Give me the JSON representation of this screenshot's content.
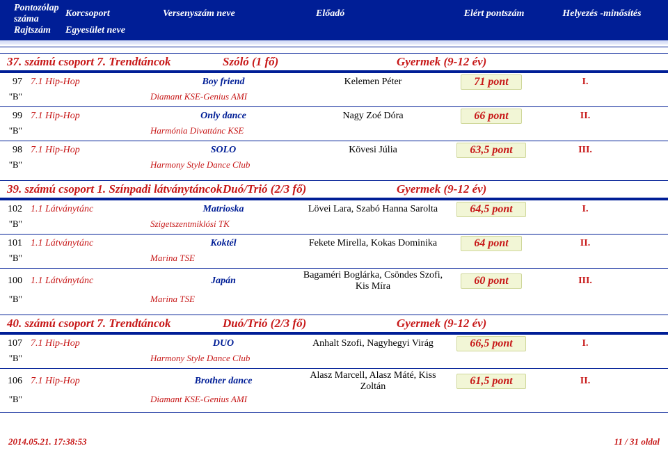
{
  "header": {
    "line1": {
      "num": "Pontozólap száma",
      "korc": "Korcsoport",
      "vsz": "Versenyszám neve",
      "elo": "Előadó",
      "pont": "Elért pontszám",
      "hely": "Helyezés -minősítés"
    },
    "line2": {
      "num": "Rajtszám",
      "korc": "Egyesület neve"
    }
  },
  "groups": [
    {
      "name": "37. számú csoport  7.  Trendtáncok",
      "form": "Szóló (1 fő)",
      "age": "Gyermek (9-12 év)",
      "entries": [
        {
          "start": "97",
          "cat": "7.1 Hip-Hop",
          "title": "Boy friend",
          "perf": "Kelemen Péter",
          "score": "71 pont",
          "place": "I.",
          "b": "\"B\"",
          "club": "Diamant KSE-Genius AMI"
        },
        {
          "start": "99",
          "cat": "7.1 Hip-Hop",
          "title": "Only dance",
          "perf": "Nagy Zoé Dóra",
          "score": "66 pont",
          "place": "II.",
          "b": "\"B\"",
          "club": "Harmónia Divattánc KSE"
        },
        {
          "start": "98",
          "cat": "7.1 Hip-Hop",
          "title": "SOLO",
          "perf": "Kövesi Júlia",
          "score": "63,5 pont",
          "place": "III.",
          "b": "\"B\"",
          "club": "Harmony Style Dance Club"
        }
      ]
    },
    {
      "name": "39. számú csoport  1.  Színpadi látványtáncok",
      "form": "Duó/Trió (2/3 fő)",
      "age": "Gyermek (9-12 év)",
      "entries": [
        {
          "start": "102",
          "cat": "1.1 Látványtánc",
          "title": "Matrioska",
          "perf": "Lövei Lara, Szabó Hanna Sarolta",
          "score": "64,5 pont",
          "place": "I.",
          "b": "\"B\"",
          "club": "Szigetszentmiklósi TK"
        },
        {
          "start": "101",
          "cat": "1.1 Látványtánc",
          "title": "Koktél",
          "perf": "Fekete Mirella, Kokas Dominika",
          "score": "64 pont",
          "place": "II.",
          "b": "\"B\"",
          "club": "Marina TSE"
        },
        {
          "start": "100",
          "cat": "1.1 Látványtánc",
          "title": "Japán",
          "perf": "Bagaméri Boglárka, Csöndes Szofi, Kis Míra",
          "score": "60 pont",
          "place": "III.",
          "b": "\"B\"",
          "club": "Marina TSE"
        }
      ]
    },
    {
      "name": "40. számú csoport  7.  Trendtáncok",
      "form": "Duó/Trió (2/3 fő)",
      "age": "Gyermek (9-12 év)",
      "entries": [
        {
          "start": "107",
          "cat": "7.1 Hip-Hop",
          "title": "DUO",
          "perf": "Anhalt Szofi, Nagyhegyi Virág",
          "score": "66,5 pont",
          "place": "I.",
          "b": "\"B\"",
          "club": "Harmony Style Dance Club"
        },
        {
          "start": "106",
          "cat": "7.1 Hip-Hop",
          "title": "Brother dance",
          "perf": "Alasz Marcell, Alasz Máté, Kiss Zoltán",
          "score": "61,5 pont",
          "place": "II.",
          "b": "\"B\"",
          "club": "Diamant KSE-Genius AMI"
        }
      ]
    }
  ],
  "footer": {
    "timestamp": "2014.05.21.  17:38:53",
    "page": "11 / 31 oldal"
  },
  "colors": {
    "band": "#001e96",
    "red": "#c71818",
    "score_bg": "#f2f6d6",
    "score_border": "#cfd79a"
  }
}
